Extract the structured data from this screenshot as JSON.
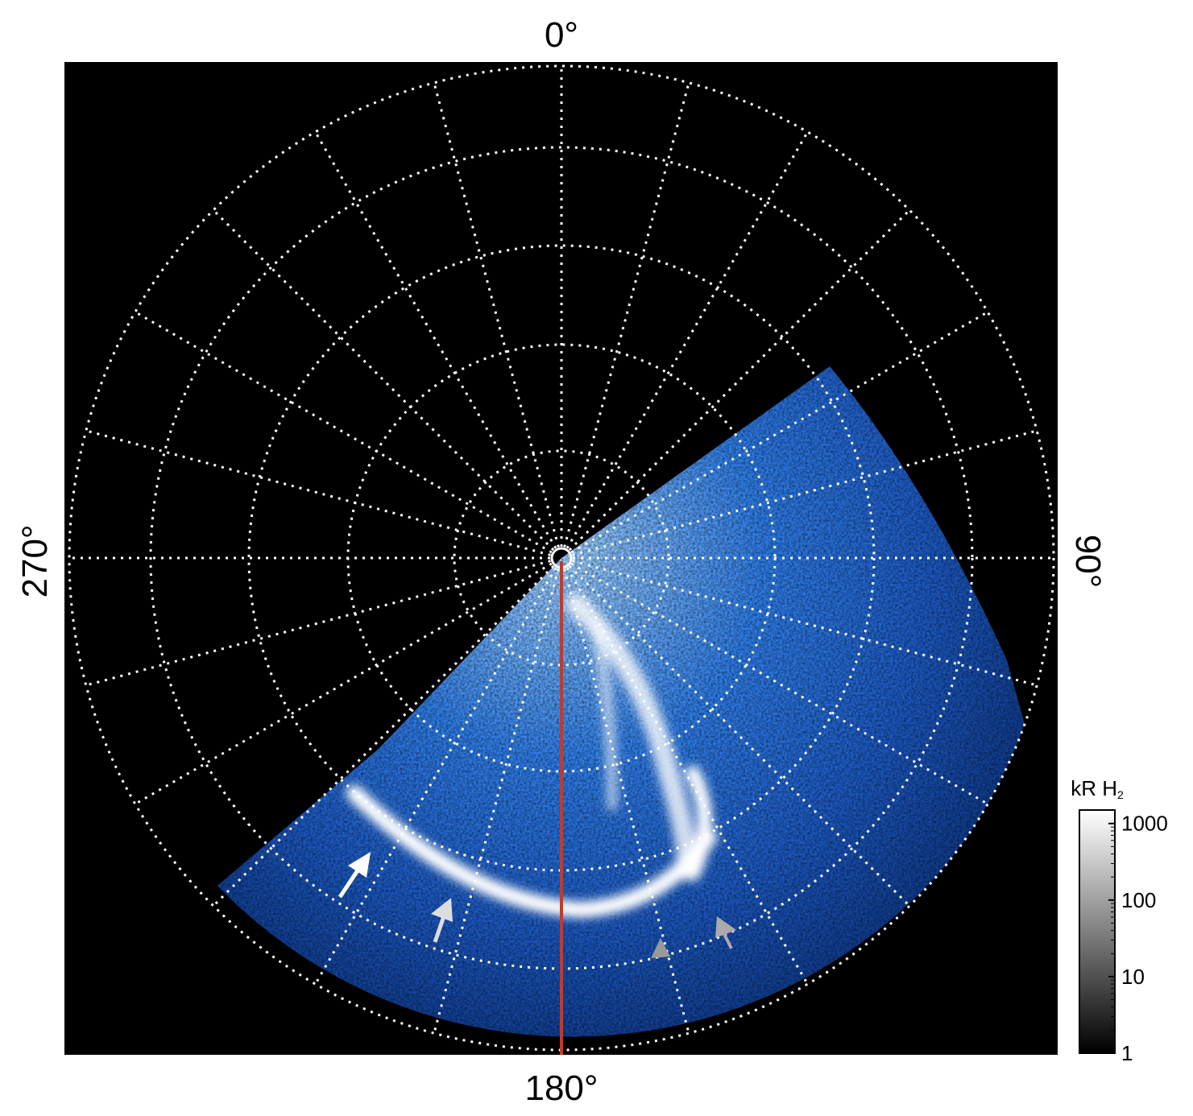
{
  "labels": {
    "top": "0°",
    "bottom": "180°",
    "left": "270°",
    "right": "90°"
  },
  "colorbar": {
    "title": "kR H",
    "title_sub": "2",
    "ticks": [
      1,
      10,
      100,
      1000
    ],
    "lim": [
      1,
      1500
    ],
    "log": true
  }
}
